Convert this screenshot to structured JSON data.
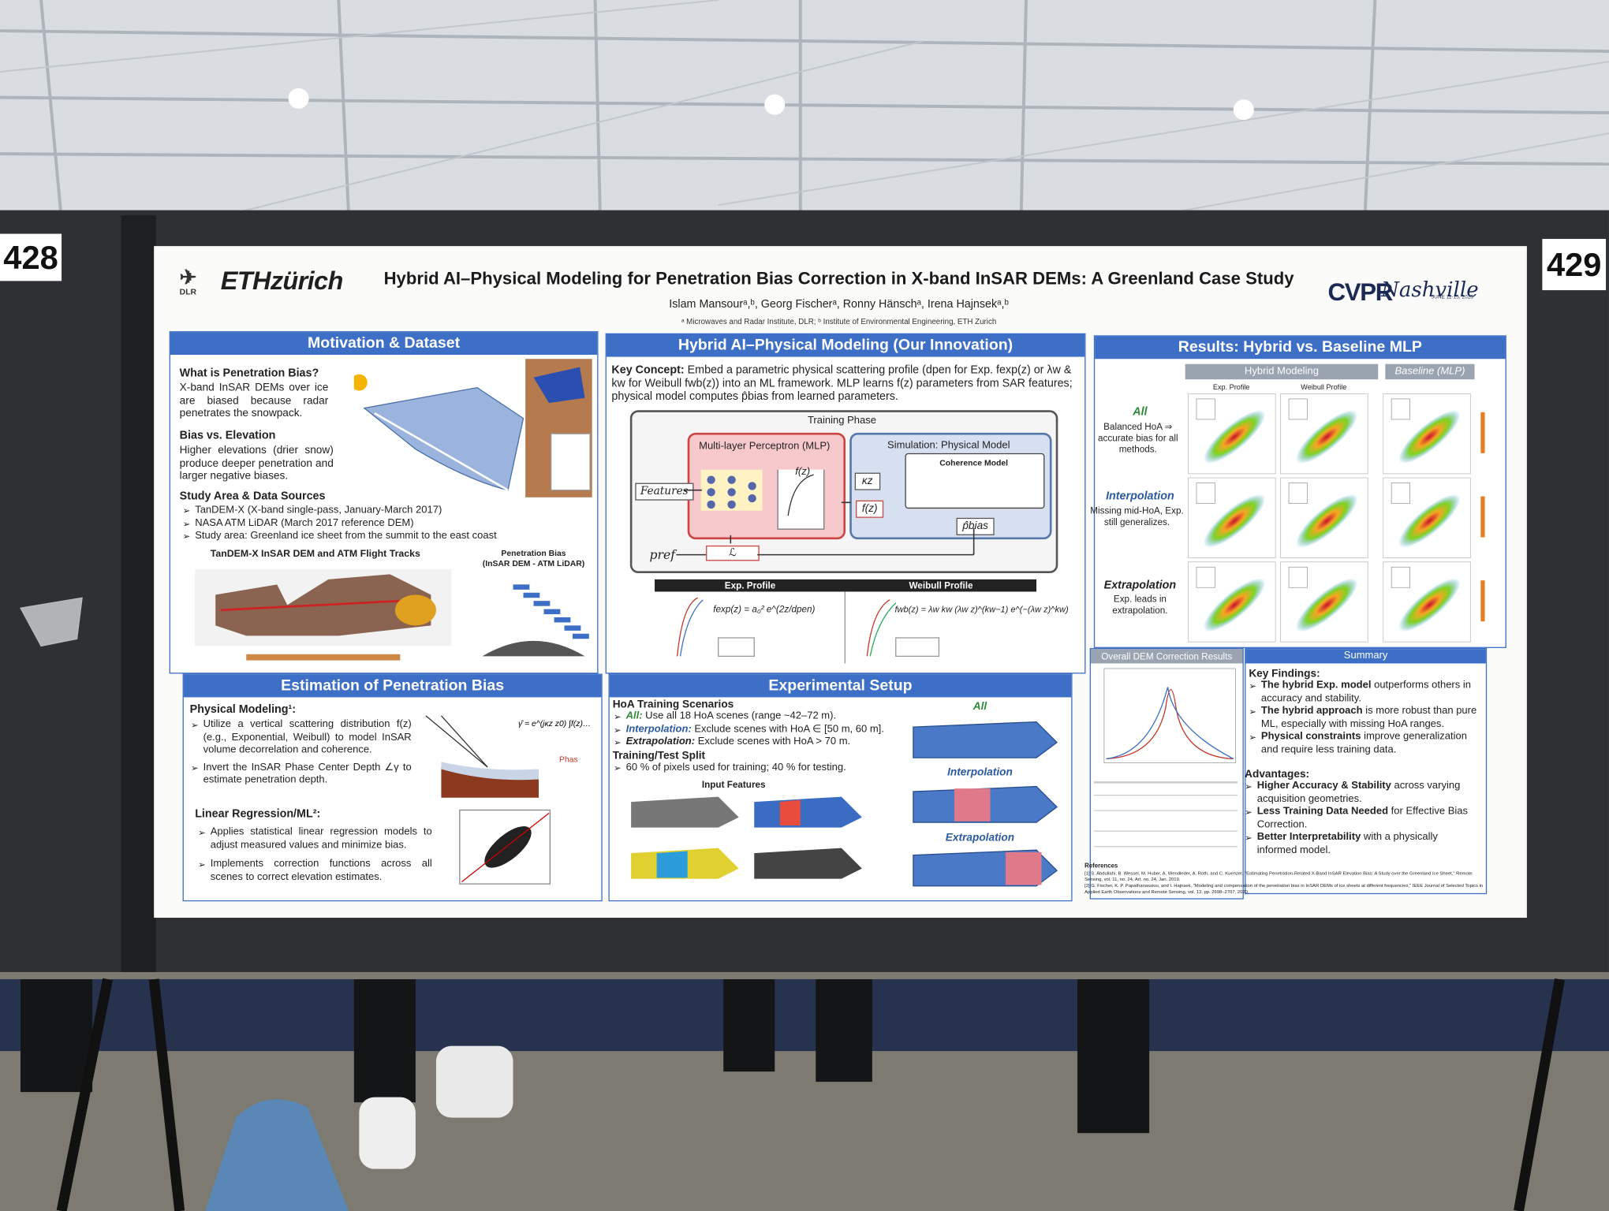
{
  "booths": [
    "428",
    "429"
  ],
  "header": {
    "logo_dlr": "DLR",
    "logo_eth": "ETHzürich",
    "title": "Hybrid AI–Physical Modeling for Penetration Bias Correction in X-band InSAR DEMs: A Greenland Case Study",
    "authors": "Islam Mansourᵃ,ᵇ, Georg Fischerᵃ, Ronny Hänschᵃ, Irena Hajnsekᵃ,ᵇ",
    "affiliations": "ᵃ Microwaves and Radar Institute, DLR; ᵇ Institute of Environmental Engineering, ETH Zurich",
    "cvpr": "CVPR",
    "cvpr_city": "Nashville",
    "cvpr_dates": "JUNE 11-15, 2025"
  },
  "motivation": {
    "heading": "Motivation & Dataset",
    "q1": "What is Penetration Bias?",
    "a1": "X-band InSAR DEMs over ice are biased because radar penetrates the snowpack.",
    "q2": "Bias vs. Elevation",
    "a2": "Higher elevations (drier snow) produce deeper penetration and larger negative biases.",
    "q3": "Study Area & Data Sources",
    "bullets": [
      "TanDEM-X (X-band single-pass, January-March 2017)",
      "NASA ATM LiDAR (March 2017 reference DEM)",
      "Study area: Greenland ice sheet from the summit to the east coast"
    ],
    "fig_map": "TanDEM-X InSAR DEM and ATM Flight Tracks",
    "fig_bias": "Penetration Bias\n(InSAR DEM - ATM LiDAR)"
  },
  "hybrid": {
    "heading": "Hybrid AI–Physical Modeling (Our Innovation)",
    "key_label": "Key Concept:",
    "key_text": "Embed a parametric physical scattering profile (dpen for Exp. fexp(z) or λw & kw for Weibull fwb(z)) into an ML framework. MLP learns f(z) parameters from SAR features; physical model computes p̂bias from learned parameters.",
    "phase": "Training Phase",
    "mlp": "Multi-layer Perceptron (MLP)",
    "sim": "Simulation: Physical Model",
    "coherence": "Coherence Model",
    "features": "Features",
    "pref": "pref",
    "loss": "ℒ",
    "fz": "f(z)",
    "kz": "κz",
    "pbias": "p̂bias",
    "exp_head": "Exp. Profile",
    "wb_head": "Weibull Profile",
    "exp_formula": "fexp(z) = a₀² e^(2z/dpen)",
    "wb_formula": "fwb(z) = λw kw (λw z)^(kw−1) e^(−(λw z)^kw)"
  },
  "estimation": {
    "heading": "Estimation of Penetration Bias",
    "phys": "Physical Modeling¹:",
    "phys_bullets": [
      "Utilize a vertical scattering distribution f(z) (e.g., Exponential, Weibull) to model InSAR volume decorrelation and coherence.",
      "Invert the InSAR Phase Center Depth ∠γ to estimate penetration depth."
    ],
    "lr": "Linear Regression/ML²:",
    "lr_bullets": [
      "Applies statistical linear regression models to adjust measured values and minimize bias.",
      "Implements correction functions across all scenes to correct elevation estimates."
    ]
  },
  "setup": {
    "heading": "Experimental Setup",
    "scen": "HoA Training Scenarios",
    "items": [
      {
        "label": "All:",
        "text": "Use all 18 HoA scenes (range ~42–72 m)."
      },
      {
        "label": "Interpolation:",
        "text": "Exclude scenes with HoA ∈ [50 m, 60 m]."
      },
      {
        "label": "Extrapolation:",
        "text": "Exclude scenes with HoA > 70 m."
      }
    ],
    "split": "Training/Test Split",
    "split_text": "60 % of pixels used for training; 40 % for testing.",
    "features": "Input Features",
    "maps": [
      "All",
      "Interpolation",
      "Extrapolation"
    ]
  },
  "results": {
    "heading": "Results: Hybrid vs. Baseline MLP",
    "hybrid": "Hybrid Modeling",
    "baseline": "Baseline (MLP)",
    "exp": "Exp. Profile",
    "wb": "Weibull Profile",
    "rows": [
      {
        "label": "All",
        "text": "Balanced HoA ⇒ accurate bias for all methods."
      },
      {
        "label": "Interpolation",
        "text": "Missing mid-HoA, Exp. still generalizes."
      },
      {
        "label": "Extrapolation",
        "text": "Exp. leads in extrapolation."
      }
    ],
    "overall": "Overall DEM Correction Results"
  },
  "summary": {
    "heading": "Summary",
    "key": "Key Findings:",
    "findings": [
      {
        "b": "The hybrid Exp. model",
        "t": "outperforms others in accuracy and stability."
      },
      {
        "b": "The hybrid approach",
        "t": "is more robust than pure ML, especially with missing HoA ranges."
      },
      {
        "b": "Physical constraints",
        "t": "improve generalization and require less training data."
      }
    ],
    "adv": "Advantages:",
    "advantages": [
      {
        "b": "Higher Accuracy & Stability",
        "t": "across varying acquisition geometries."
      },
      {
        "b": "Less Training Data Needed",
        "t": "for Effective Bias Correction."
      },
      {
        "b": "Better Interpretability",
        "t": "with a physically informed model."
      }
    ]
  },
  "references": {
    "heading": "References",
    "items": [
      "[1] S. Abdullahi, B. Wessel, M. Huber, A. Wendleder, A. Roth, and C. Kuenzer, \"Estimating Penetration-Related X-Band InSAR Elevation Bias: A Study over the Greenland Ice Sheet,\" Remote Sensing, vol. 11, no. 24, Art. no. 24, Jan. 2019.",
      "[2] G. Fischer, K. P. Papathanassiou, and I. Hajnsek, \"Modeling and compensation of the penetration bias in InSAR DEMs of ice sheets at different frequencies,\" IEEE Journal of Selected Topics in Applied Earth Observations and Remote Sensing, vol. 13, pp. 2698–2707, 2020."
    ]
  }
}
